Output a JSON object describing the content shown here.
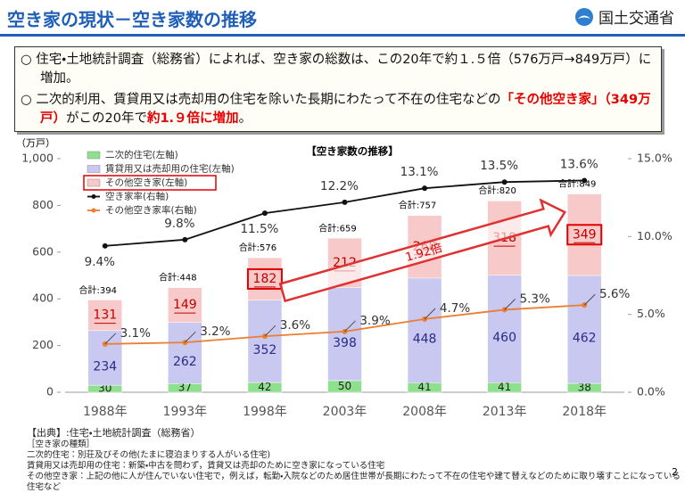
{
  "header": {
    "title": "空き家の現状－空き家数の推移",
    "org": "国土交通省"
  },
  "summary": {
    "bullets": [
      [
        {
          "text": "住宅・土地統計調査（総務省）によれば、空き家の総数は、この20年で約１.５倍（576万戸→849万戸）に増加。",
          "color": "#111111"
        }
      ],
      [
        {
          "text": "二次的利用、賃貸用又は売却用の住宅を除いた長期にわたって不在の住宅などの",
          "color": "#111111"
        },
        {
          "text": "「その他空き家」（349万戸）",
          "color": "#e60000"
        },
        {
          "text": "がこの20年で",
          "color": "#111111"
        },
        {
          "text": "約1.９倍に増加",
          "color": "#e60000"
        },
        {
          "text": "。",
          "color": "#111111"
        }
      ]
    ]
  },
  "chart_data": {
    "type": "bar",
    "title": "【空き家数の推移】",
    "y_unit": "（万戸）",
    "annotation": "1.92倍",
    "categories": [
      "1988年",
      "1993年",
      "1998年",
      "2003年",
      "2008年",
      "2013年",
      "2018年"
    ],
    "ylim": [
      0,
      1000
    ],
    "yticks": [
      0,
      200,
      400,
      600,
      800,
      {
        "value": 1000,
        "label": "1,000"
      }
    ],
    "y2lim": [
      0,
      15
    ],
    "y2ticks": [
      {
        "value": 0,
        "label": "0.0%"
      },
      {
        "value": 5,
        "label": "5.0%"
      },
      {
        "value": 10,
        "label": "10.0%"
      },
      {
        "value": 15,
        "label": "15.0%"
      }
    ],
    "series": [
      {
        "name": "二次的住宅(左軸)",
        "color": "#8ee08e",
        "values": [
          30,
          37,
          42,
          50,
          41,
          41,
          38
        ]
      },
      {
        "name": "賃貸用又は売却用の住宅(左軸)",
        "color": "#c8c8f0",
        "values": [
          234,
          262,
          352,
          398,
          448,
          460,
          462
        ]
      },
      {
        "name": "その他空き家(左軸)",
        "color": "#f7c9c9",
        "values": [
          131,
          149,
          182,
          212,
          268,
          318,
          349
        ]
      },
      {
        "name": "空き家率(右軸)",
        "color": "#111111",
        "axis": "y2",
        "values": [
          9.4,
          9.8,
          11.5,
          12.2,
          13.1,
          13.5,
          13.6
        ],
        "value_labels": [
          "9.4%",
          "9.8%",
          "11.5%",
          "12.2%",
          "13.1%",
          "13.5%",
          "13.6%"
        ]
      },
      {
        "name": "その他空き家率(右軸)",
        "color": "#ed7d31",
        "axis": "y2",
        "values": [
          3.1,
          3.2,
          3.6,
          3.9,
          4.7,
          5.3,
          5.6
        ],
        "value_labels": [
          "3.1%",
          "3.2%",
          "3.6%",
          "3.9%",
          "4.7%",
          "5.3%",
          "5.6%"
        ]
      }
    ],
    "totals": {
      "values": [
        394,
        448,
        576,
        659,
        757,
        820,
        849
      ],
      "value_labels": [
        "合計:394",
        "合計:448",
        "合計:576",
        "合計:659",
        "合計:757",
        "合計:820",
        "合計:849"
      ]
    }
  },
  "notes": {
    "source": "【出典】:住宅・土地統計調査（総務省）",
    "heading": "［空き家の種類］",
    "lines": [
      "二次的住宅：別荘及びその他(たまに寝泊まりする人がいる住宅)",
      "賃貸用又は売却用の住宅：新築・中古を問わず，賃貸又は売却のために空き家になっている住宅",
      "その他空き家：上記の他に人が住んでいない住宅で，例えば，転勤・入院などのため居住世帯が長期にわたって不在の住宅や建て替えなどのために取り壊すことになっている住宅など"
    ]
  },
  "page_number": "2"
}
